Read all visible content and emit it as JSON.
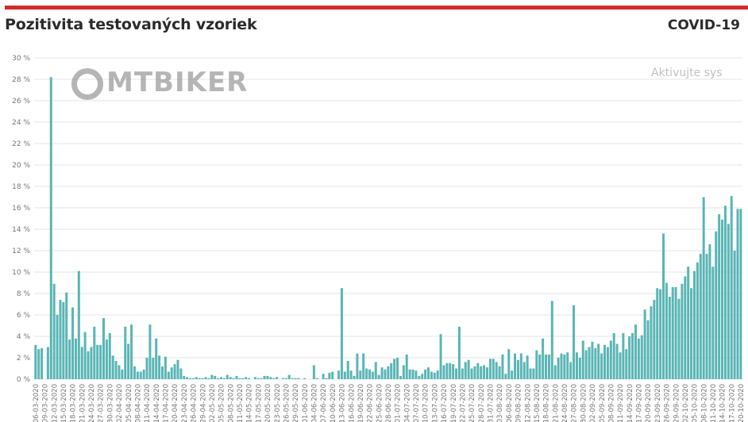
{
  "header": {
    "title": "Pozitivita testovaných vzoriek",
    "logo_text": "COVID-19"
  },
  "watermarks": {
    "site_logo": "MTBIKER",
    "os_notice": "Aktivujte sys"
  },
  "colors": {
    "bar": "#5ab5b5",
    "accent": "#d42a2a",
    "grid": "#e6e6e6"
  },
  "chart_data": {
    "type": "bar",
    "title": "Pozitivita testovaných vzoriek",
    "xlabel": "",
    "ylabel": "",
    "ylim": [
      0,
      30
    ],
    "grid": true,
    "y_ticks": [
      "0 %",
      "2 %",
      "4 %",
      "6 %",
      "8 %",
      "10 %",
      "12 %",
      "14 %",
      "16 %",
      "18 %",
      "20 %",
      "22 %",
      "24 %",
      "26 %",
      "28 %",
      "30 %"
    ],
    "x_ticks": [
      "06-03-2020",
      "09-03-2020",
      "12-03-2020",
      "15-03-2020",
      "18-03-2020",
      "21-03-2020",
      "24-03-2020",
      "27-03-2020",
      "30-03-2020",
      "02-04-2020",
      "05-04-2020",
      "08-04-2020",
      "11-04-2020",
      "14-04-2020",
      "17-04-2020",
      "20-04-2020",
      "23-04-2020",
      "26-04-2020",
      "29-04-2020",
      "02-05-2020",
      "05-05-2020",
      "08-05-2020",
      "11-05-2020",
      "14-05-2020",
      "17-05-2020",
      "20-05-2020",
      "23-05-2020",
      "26-05-2020",
      "29-05-2020",
      "01-06-2020",
      "04-06-2020",
      "07-06-2020",
      "10-06-2020",
      "13-06-2020",
      "16-06-2020",
      "19-06-2020",
      "22-06-2020",
      "25-06-2020",
      "28-06-2020",
      "01-07-2020",
      "04-07-2020",
      "07-07-2020",
      "10-07-2020",
      "13-07-2020",
      "16-07-2020",
      "19-07-2020",
      "22-07-2020",
      "25-07-2020",
      "28-07-2020",
      "31-07-2020",
      "03-08-2020",
      "06-08-2020",
      "09-08-2020",
      "12-08-2020",
      "15-08-2020",
      "18-08-2020",
      "21-08-2020",
      "24-08-2020",
      "27-08-2020",
      "30-08-2020",
      "02-09-2020",
      "05-09-2020",
      "08-09-2020",
      "11-09-2020",
      "14-09-2020",
      "17-09-2020",
      "20-09-2020",
      "23-09-2020",
      "26-09-2020",
      "29-09-2020",
      "02-10-2020",
      "05-10-2020",
      "08-10-2020",
      "11-10-2020",
      "14-10-2020",
      "17-10-2020",
      "20-10-2020"
    ],
    "x_tick_every_days": 3,
    "values": [
      3.2,
      2.8,
      2.9,
      0,
      3.0,
      28.2,
      8.9,
      6.0,
      7.4,
      7.2,
      8.1,
      3.7,
      6.7,
      3.8,
      10.1,
      3.0,
      4.4,
      2.6,
      3.0,
      4.9,
      3.2,
      3.2,
      5.7,
      3.7,
      4.3,
      2.2,
      1.7,
      1.3,
      0.9,
      4.9,
      3.3,
      5.1,
      1.2,
      0.7,
      0.7,
      0.9,
      2.0,
      5.1,
      2.0,
      3.8,
      2.2,
      1.2,
      2.1,
      0.7,
      1.1,
      1.4,
      1.8,
      1.0,
      0.3,
      0.2,
      0.1,
      0.1,
      0.2,
      0.1,
      0.1,
      0.2,
      0.1,
      0.4,
      0.3,
      0.1,
      0.2,
      0.1,
      0.4,
      0.2,
      0.1,
      0.3,
      0.1,
      0.1,
      0.2,
      0.1,
      0.0,
      0.2,
      0.1,
      0.1,
      0.3,
      0.3,
      0.2,
      0.1,
      0.2,
      0.0,
      0.1,
      0.1,
      0.4,
      0.1,
      0.1,
      0.1,
      0.0,
      0.1,
      0.0,
      0.0,
      1.3,
      0.1,
      0.0,
      0.5,
      0.1,
      0.6,
      0.7,
      0.0,
      0.8,
      8.5,
      0.7,
      1.7,
      0.8,
      0.3,
      2.4,
      0.8,
      2.4,
      1.0,
      0.9,
      0.7,
      1.6,
      0.4,
      1.1,
      0.9,
      1.2,
      1.5,
      1.9,
      2.0,
      0.3,
      1.3,
      2.3,
      0.9,
      0.9,
      0.8,
      0.3,
      0.5,
      0.9,
      1.1,
      0.7,
      0.6,
      0.8,
      4.2,
      1.3,
      1.5,
      1.5,
      1.4,
      1.0,
      4.9,
      1.0,
      1.6,
      1.8,
      1.0,
      1.2,
      1.5,
      1.2,
      1.3,
      1.1,
      1.9,
      1.9,
      1.6,
      1.2,
      2.3,
      0.5,
      2.8,
      0.8,
      2.4,
      1.8,
      2.4,
      1.6,
      2.2,
      1.0,
      1.0,
      2.7,
      2.3,
      3.8,
      2.3,
      2.3,
      7.3,
      1.3,
      2.0,
      2.4,
      2.3,
      2.5,
      1.6,
      6.9,
      2.5,
      2.0,
      3.6,
      2.7,
      3.0,
      3.5,
      2.9,
      3.3,
      2.4,
      3.2,
      3.0,
      3.6,
      4.3,
      3.3,
      2.5,
      4.3,
      2.8,
      4.0,
      4.3,
      5.1,
      3.8,
      4.1,
      6.5,
      5.5,
      6.8,
      7.4,
      8.5,
      8.4,
      13.6,
      9.0,
      7.7,
      8.6,
      8.6,
      7.5,
      8.9,
      9.6,
      10.5,
      8.5,
      10.1,
      10.9,
      11.7,
      17.0,
      11.7,
      12.6,
      10.5,
      13.8,
      15.4,
      14.9,
      16.2,
      14.5,
      17.1,
      12.0,
      15.9,
      15.9
    ]
  }
}
